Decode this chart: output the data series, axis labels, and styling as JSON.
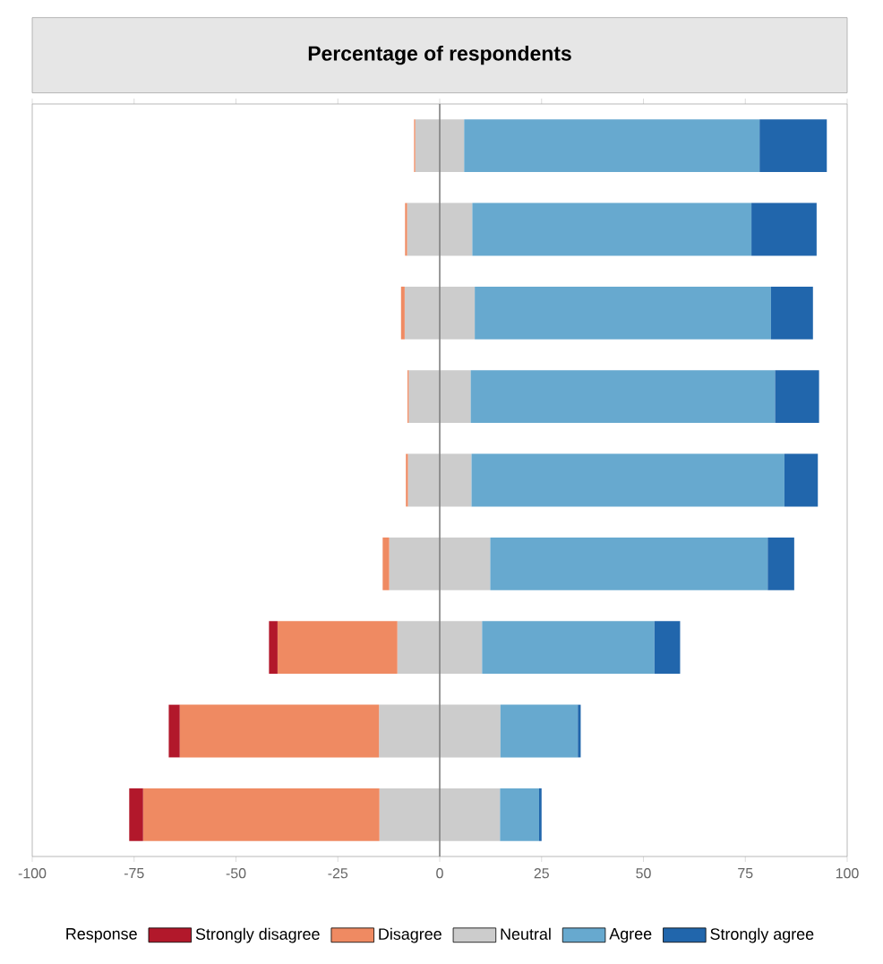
{
  "chart_data": {
    "type": "bar",
    "orientation": "horizontal",
    "stacked": true,
    "title": "Percentage of respondents",
    "legend_title": "Response",
    "categories": [
      null,
      null,
      null,
      null,
      null,
      null,
      null,
      null,
      null
    ],
    "series": [
      {
        "color": "#cccccc",
        "values": [
          -6,
          -8,
          -8.6,
          -7.6,
          -7.8,
          -12.4,
          -10.4,
          -14.9,
          -14.8
        ]
      },
      {
        "name": "Disagree",
        "color": "#ef8a62",
        "values": [
          -0.3,
          -0.5,
          -0.9,
          -0.3,
          -0.5,
          -1.6,
          -29.4,
          -48.9,
          -58
        ]
      },
      {
        "name": "Strongly disagree",
        "color": "#b2182b",
        "values": [
          0,
          0,
          0,
          0,
          0,
          0,
          -2.1,
          -2.7,
          -3.4
        ]
      },
      {
        "name": "Neutral",
        "color": "#cccccc",
        "values": [
          6,
          8,
          8.6,
          7.6,
          7.8,
          12.4,
          10.4,
          14.9,
          14.8
        ]
      },
      {
        "name": "Agree",
        "color": "#67a9cf",
        "values": [
          72.5,
          68.5,
          72.7,
          74.7,
          76.8,
          68.1,
          42.3,
          19,
          9.6
        ]
      },
      {
        "name": "Strongly agree",
        "color": "#2166ac",
        "values": [
          16.5,
          16,
          10.3,
          10.8,
          8.2,
          6.5,
          6.3,
          0.7,
          0.6
        ]
      }
    ],
    "xlim": [
      -100,
      100
    ],
    "xticks": [
      -100,
      -75,
      -50,
      -25,
      0,
      25,
      50,
      75,
      100
    ],
    "ref_lines": [
      {
        "axis": "x",
        "value": 0,
        "color": "#808080"
      }
    ],
    "tick_labels": "x",
    "legend": "bottom"
  }
}
